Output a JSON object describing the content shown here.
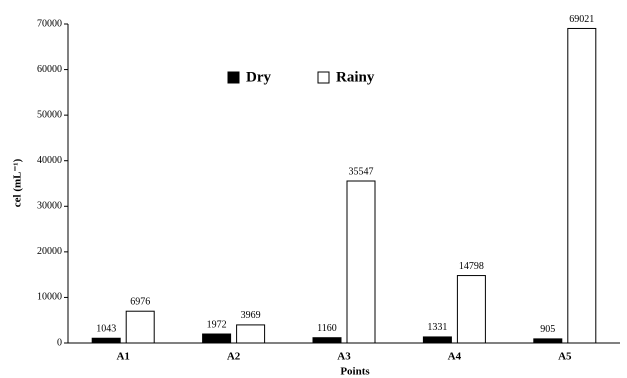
{
  "chart_data": {
    "type": "bar",
    "xlabel": "Points",
    "ylabel": "cel (mL⁻¹)",
    "categories": [
      "A1",
      "A2",
      "A3",
      "A4",
      "A5"
    ],
    "series": [
      {
        "name": "Dry",
        "color": "#000000",
        "values": [
          1043,
          1972,
          1160,
          1331,
          905
        ]
      },
      {
        "name": "Rainy",
        "color": "#ffffff",
        "values": [
          6976,
          3969,
          35547,
          14798,
          69021
        ]
      }
    ],
    "ylim": [
      0,
      70000
    ],
    "yticks": [
      0,
      10000,
      20000,
      30000,
      40000,
      50000,
      60000,
      70000
    ],
    "grid": false,
    "legend": "top"
  }
}
